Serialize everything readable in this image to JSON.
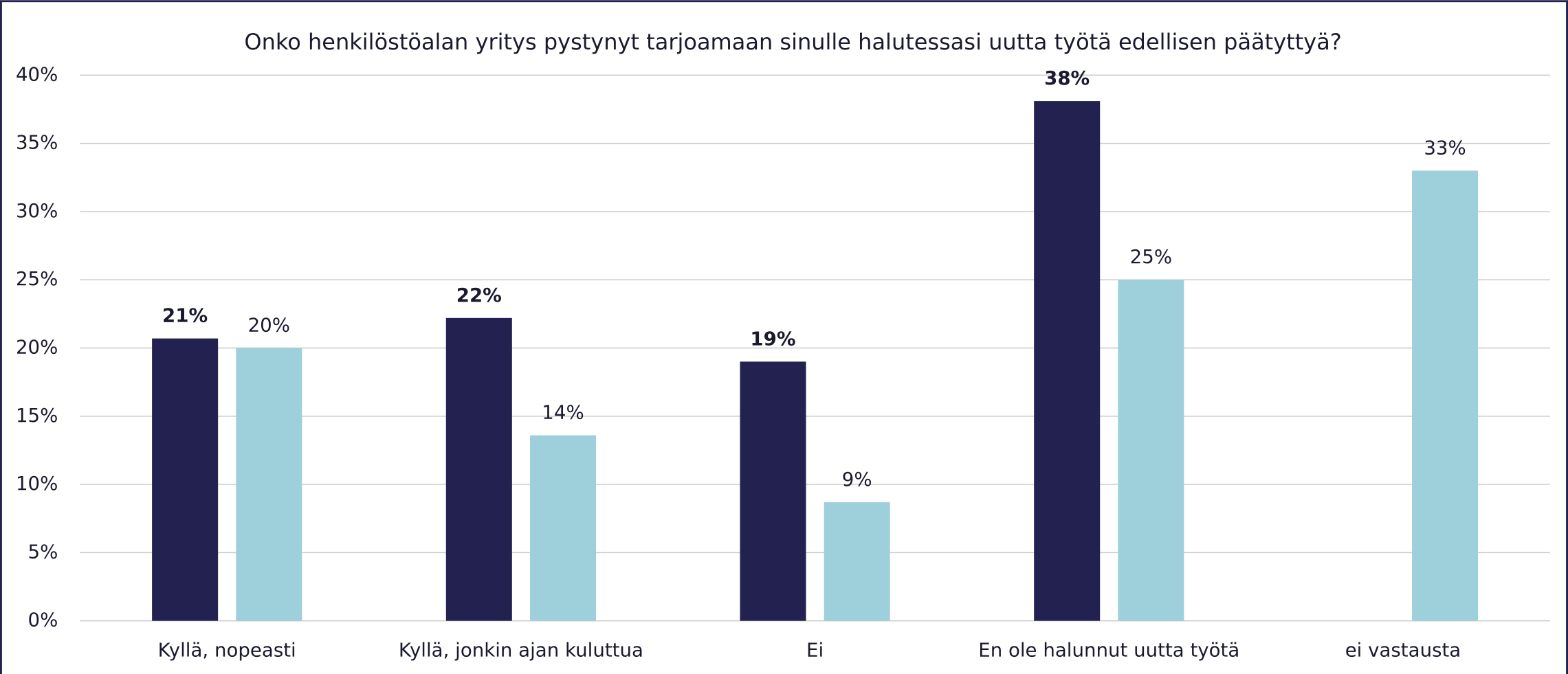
{
  "chart_data": {
    "type": "bar",
    "title": "Onko henkilöstöalan yritys pystynyt tarjoamaan sinulle halutessasi uutta työtä edellisen päätyttyä?",
    "categories": [
      "Kyllä, nopeasti",
      "Kyllä, jonkin ajan kuluttua",
      "Ei",
      "En ole halunnut uutta työtä",
      "ei vastausta"
    ],
    "series": [
      {
        "color": "#23214f",
        "values": [
          20.7,
          22.2,
          19,
          38.1,
          null
        ],
        "value_labels": [
          "21%",
          "22%",
          "19%",
          "38%",
          null
        ]
      },
      {
        "color": "#9ed0db",
        "values": [
          20,
          13.6,
          8.7,
          25,
          33
        ],
        "value_labels": [
          "20%",
          "14%",
          "9%",
          "25%",
          "33%"
        ]
      }
    ],
    "ylim": [
      0,
      40
    ],
    "yticks": [
      {
        "value": 0,
        "label": "0%"
      },
      {
        "value": 5,
        "label": "5%"
      },
      {
        "value": 10,
        "label": "10%"
      },
      {
        "value": 15,
        "label": "15%"
      },
      {
        "value": 20,
        "label": "20%"
      },
      {
        "value": 25,
        "label": "25%"
      },
      {
        "value": 30,
        "label": "30%"
      },
      {
        "value": 35,
        "label": "35%"
      },
      {
        "value": 40,
        "label": "40%"
      }
    ],
    "grid": true
  }
}
